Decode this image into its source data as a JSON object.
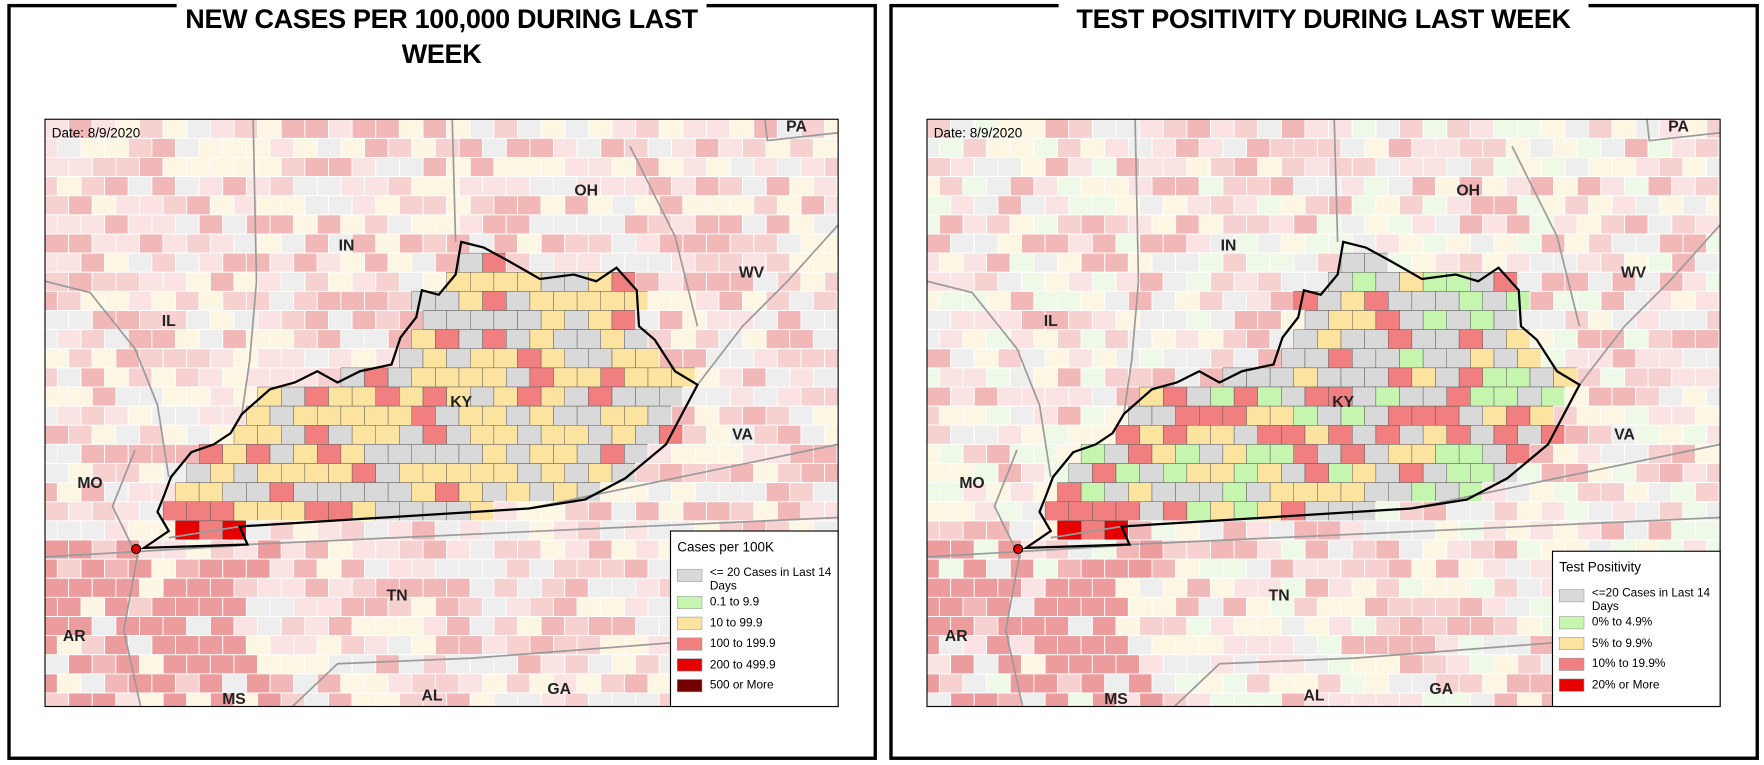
{
  "panels": [
    {
      "title": "NEW CASES PER 100,000 DURING LAST WEEK",
      "date": "Date: 8/9/2020",
      "state_labels": [
        "PA",
        "OH",
        "IN",
        "WV",
        "IL",
        "KY",
        "VA",
        "MO",
        "TN",
        "AR",
        "MS",
        "AL",
        "GA"
      ],
      "legend": {
        "title": "Cases per 100K",
        "items": [
          {
            "label": "<= 20 Cases in Last 14 Days",
            "color": "#d9d9d9"
          },
          {
            "label": "0.1 to 9.9",
            "color": "#c6f5b0"
          },
          {
            "label": "10 to 99.9",
            "color": "#fde3a0"
          },
          {
            "label": "100 to 199.9",
            "color": "#f27f7f"
          },
          {
            "label": "200 to 499.9",
            "color": "#e60000"
          },
          {
            "label": "500 or More",
            "color": "#730000"
          }
        ]
      }
    },
    {
      "title": "TEST POSITIVITY DURING LAST WEEK",
      "date": "Date: 8/9/2020",
      "state_labels": [
        "PA",
        "OH",
        "IN",
        "WV",
        "IL",
        "KY",
        "VA",
        "MO",
        "TN",
        "AR",
        "MS",
        "AL",
        "GA"
      ],
      "legend": {
        "title": "Test Positivity",
        "items": [
          {
            "label": "<=20 Cases in Last 14 Days",
            "color": "#d9d9d9"
          },
          {
            "label": "0% to 4.9%",
            "color": "#c6f5b0"
          },
          {
            "label": "5% to 9.9%",
            "color": "#fde3a0"
          },
          {
            "label": "10% to 19.9%",
            "color": "#f27f7f"
          },
          {
            "label": "20% or More",
            "color": "#e60000"
          }
        ]
      }
    }
  ]
}
